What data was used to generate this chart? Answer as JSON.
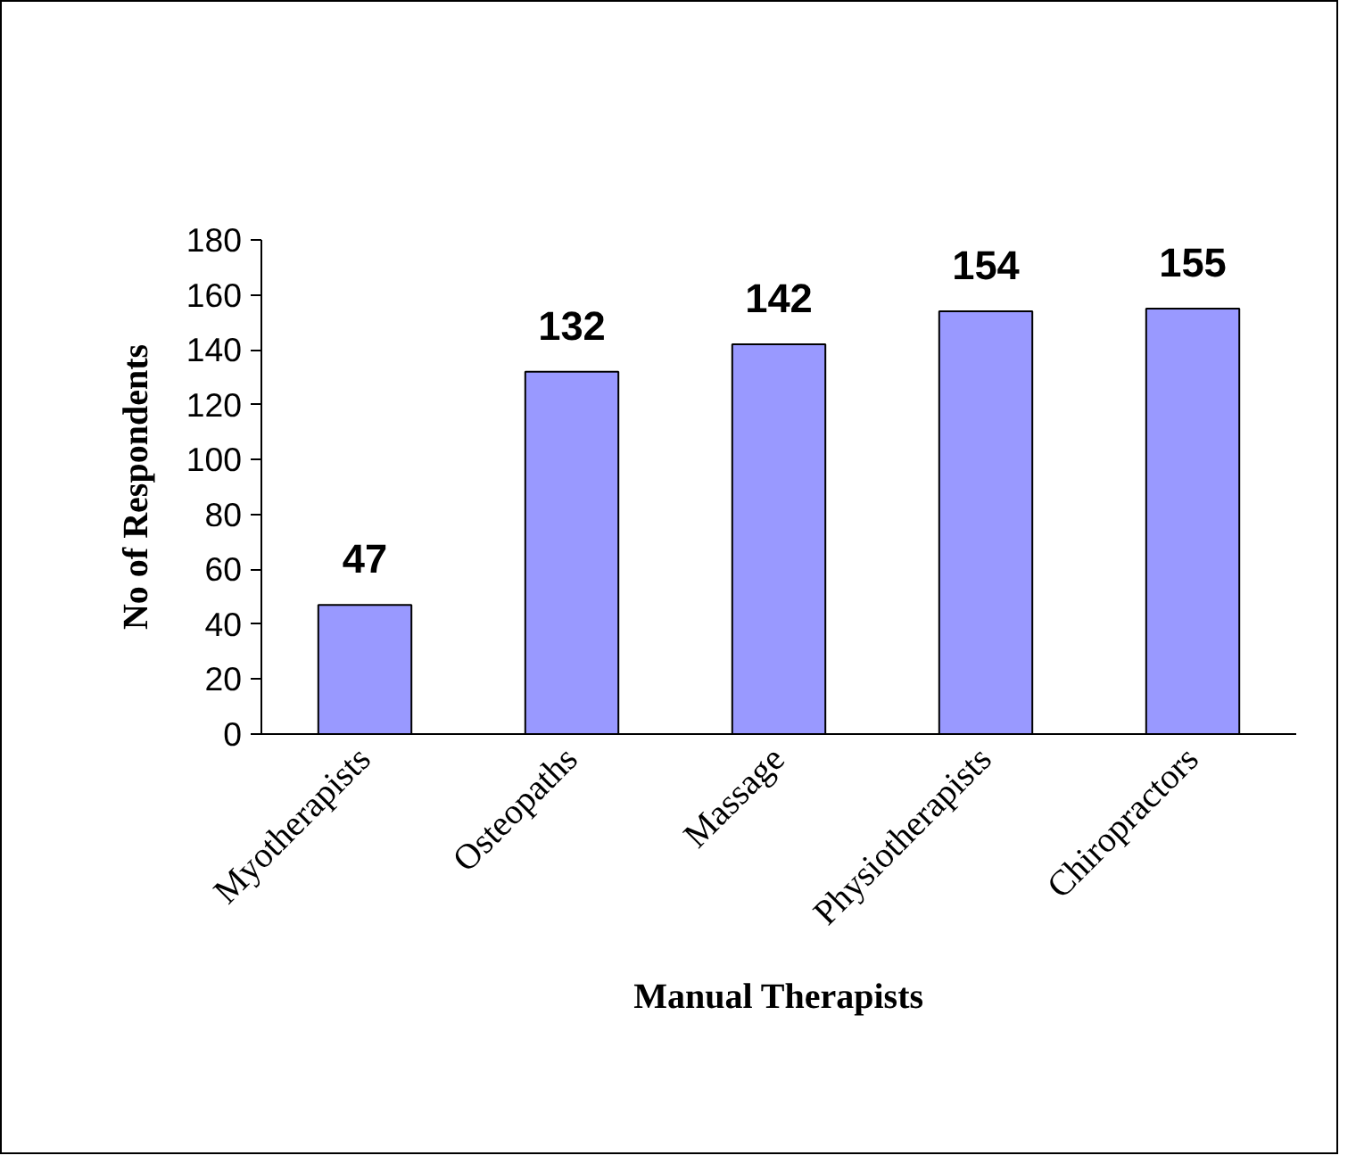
{
  "chart_data": {
    "type": "bar",
    "categories": [
      "Myotherapists",
      "Osteopaths",
      "Massage",
      "Physiotherapists",
      "Chiropractors"
    ],
    "values": [
      47,
      132,
      142,
      154,
      155
    ],
    "color": "#9999ff",
    "xlabel": "Manual Therapists",
    "ylabel": "No of Respondents",
    "ylim": [
      0,
      180
    ],
    "yticks": [
      0,
      20,
      40,
      60,
      80,
      100,
      120,
      140,
      160,
      180
    ],
    "data_labels": true,
    "grid": false
  }
}
